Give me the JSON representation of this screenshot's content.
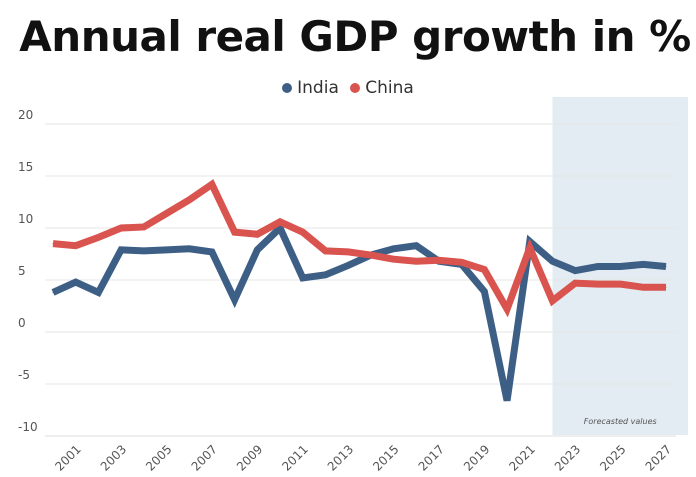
{
  "chart_data": {
    "type": "line",
    "title": "Annual real GDP growth in %",
    "x": [
      2000,
      2001,
      2002,
      2003,
      2004,
      2005,
      2006,
      2007,
      2008,
      2009,
      2010,
      2011,
      2012,
      2013,
      2014,
      2015,
      2016,
      2017,
      2018,
      2019,
      2020,
      2021,
      2022,
      2023,
      2024,
      2025,
      2026,
      2027
    ],
    "series": [
      {
        "name": "India",
        "color": "#3d5f86",
        "values": [
          3.8,
          4.8,
          3.8,
          7.9,
          7.8,
          7.9,
          8.0,
          7.7,
          3.1,
          7.9,
          10.0,
          5.2,
          5.5,
          6.4,
          7.4,
          8.0,
          8.3,
          6.8,
          6.5,
          3.9,
          -6.6,
          8.7,
          6.8,
          5.9,
          6.3,
          6.3,
          6.5,
          6.3
        ]
      },
      {
        "name": "China",
        "color": "#d9534f",
        "values": [
          8.5,
          8.3,
          9.1,
          10.0,
          10.1,
          11.4,
          12.7,
          14.2,
          9.6,
          9.4,
          10.6,
          9.6,
          7.8,
          7.7,
          7.4,
          7.0,
          6.8,
          6.9,
          6.7,
          6.0,
          2.2,
          8.1,
          3.0,
          4.7,
          4.6,
          4.6,
          4.3,
          4.3
        ]
      }
    ],
    "x_tick_labels": [
      "2001",
      "2003",
      "2005",
      "2007",
      "2009",
      "2011",
      "2013",
      "2015",
      "2017",
      "2019",
      "2021",
      "2023",
      "2025",
      "2027"
    ],
    "y_ticks": [
      -10,
      -5,
      0,
      5,
      10,
      15,
      20
    ],
    "ylim": [
      -10,
      20
    ],
    "xlim": [
      2000,
      2027
    ],
    "grid": true,
    "legend_position": "top",
    "forecast_region": {
      "from": 2022,
      "to": 2027,
      "label": "Forecasted values",
      "color": "#e3ecf2"
    },
    "xlabel": "",
    "ylabel": ""
  }
}
